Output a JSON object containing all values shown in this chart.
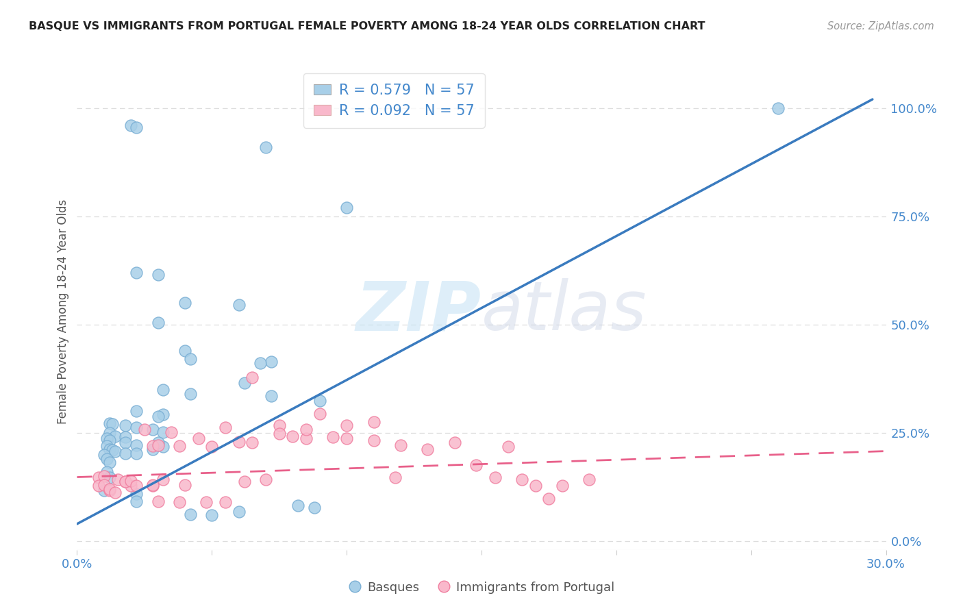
{
  "title": "BASQUE VS IMMIGRANTS FROM PORTUGAL FEMALE POVERTY AMONG 18-24 YEAR OLDS CORRELATION CHART",
  "source": "Source: ZipAtlas.com",
  "ylabel_left": "Female Poverty Among 18-24 Year Olds",
  "xmin": 0.0,
  "xmax": 0.3,
  "ymin": -0.02,
  "ymax": 1.08,
  "right_yticks": [
    0.0,
    0.25,
    0.5,
    0.75,
    1.0
  ],
  "right_yticklabels": [
    "0.0%",
    "25.0%",
    "50.0%",
    "75.0%",
    "100.0%"
  ],
  "xticks": [
    0.0,
    0.05,
    0.1,
    0.15,
    0.2,
    0.25,
    0.3
  ],
  "blue_R": 0.579,
  "blue_N": 57,
  "pink_R": 0.092,
  "pink_N": 57,
  "blue_color": "#a8cfe8",
  "pink_color": "#f9b8cb",
  "blue_edge_color": "#7aafd4",
  "pink_edge_color": "#f07fa0",
  "blue_line_color": "#3a7bbf",
  "pink_line_color": "#e8608a",
  "legend_label_blue": "Basques",
  "legend_label_pink": "Immigrants from Portugal",
  "watermark_zip": "ZIP",
  "watermark_atlas": "atlas",
  "title_color": "#222222",
  "axis_label_color": "#4488cc",
  "blue_scatter_x": [
    0.02,
    0.022,
    0.07,
    0.1,
    0.022,
    0.03,
    0.04,
    0.06,
    0.03,
    0.04,
    0.042,
    0.072,
    0.068,
    0.062,
    0.032,
    0.042,
    0.072,
    0.09,
    0.022,
    0.032,
    0.03,
    0.012,
    0.013,
    0.018,
    0.022,
    0.028,
    0.032,
    0.012,
    0.014,
    0.018,
    0.011,
    0.012,
    0.018,
    0.022,
    0.011,
    0.012,
    0.013,
    0.014,
    0.01,
    0.018,
    0.011,
    0.012,
    0.011,
    0.012,
    0.01,
    0.022,
    0.022,
    0.082,
    0.088,
    0.06,
    0.042,
    0.05,
    0.26,
    0.028,
    0.032,
    0.03,
    0.022
  ],
  "blue_scatter_y": [
    0.96,
    0.955,
    0.91,
    0.77,
    0.62,
    0.615,
    0.55,
    0.545,
    0.505,
    0.44,
    0.42,
    0.415,
    0.412,
    0.365,
    0.35,
    0.34,
    0.335,
    0.325,
    0.3,
    0.292,
    0.288,
    0.272,
    0.27,
    0.268,
    0.262,
    0.258,
    0.252,
    0.25,
    0.242,
    0.24,
    0.238,
    0.232,
    0.228,
    0.222,
    0.22,
    0.212,
    0.21,
    0.208,
    0.2,
    0.202,
    0.19,
    0.182,
    0.16,
    0.148,
    0.118,
    0.11,
    0.092,
    0.082,
    0.078,
    0.068,
    0.062,
    0.06,
    1.0,
    0.212,
    0.218,
    0.228,
    0.202
  ],
  "pink_scatter_x": [
    0.008,
    0.01,
    0.015,
    0.018,
    0.02,
    0.025,
    0.028,
    0.03,
    0.032,
    0.028,
    0.035,
    0.038,
    0.04,
    0.045,
    0.05,
    0.055,
    0.06,
    0.062,
    0.065,
    0.07,
    0.075,
    0.08,
    0.085,
    0.09,
    0.095,
    0.1,
    0.11,
    0.12,
    0.13,
    0.14,
    0.148,
    0.155,
    0.16,
    0.165,
    0.17,
    0.175,
    0.18,
    0.19,
    0.008,
    0.01,
    0.012,
    0.012,
    0.014,
    0.018,
    0.02,
    0.022,
    0.028,
    0.03,
    0.038,
    0.048,
    0.055,
    0.065,
    0.075,
    0.085,
    0.1,
    0.11,
    0.118
  ],
  "pink_scatter_y": [
    0.148,
    0.15,
    0.142,
    0.138,
    0.128,
    0.258,
    0.22,
    0.222,
    0.142,
    0.128,
    0.252,
    0.22,
    0.13,
    0.238,
    0.218,
    0.262,
    0.23,
    0.138,
    0.228,
    0.142,
    0.268,
    0.242,
    0.238,
    0.295,
    0.24,
    0.238,
    0.232,
    0.222,
    0.212,
    0.228,
    0.175,
    0.148,
    0.218,
    0.142,
    0.128,
    0.098,
    0.128,
    0.142,
    0.128,
    0.13,
    0.118,
    0.12,
    0.112,
    0.138,
    0.14,
    0.128,
    0.13,
    0.092,
    0.09,
    0.09,
    0.09,
    0.378,
    0.248,
    0.258,
    0.268,
    0.275,
    0.148
  ],
  "blue_line_x": [
    0.0,
    0.295
  ],
  "blue_line_y": [
    0.04,
    1.02
  ],
  "pink_line_x": [
    0.0,
    0.3
  ],
  "pink_line_y": [
    0.148,
    0.208
  ],
  "grid_color": "#dddddd",
  "grid_yticks": [
    0.0,
    0.25,
    0.5,
    0.75,
    1.0
  ],
  "grid_linestyle": "--"
}
